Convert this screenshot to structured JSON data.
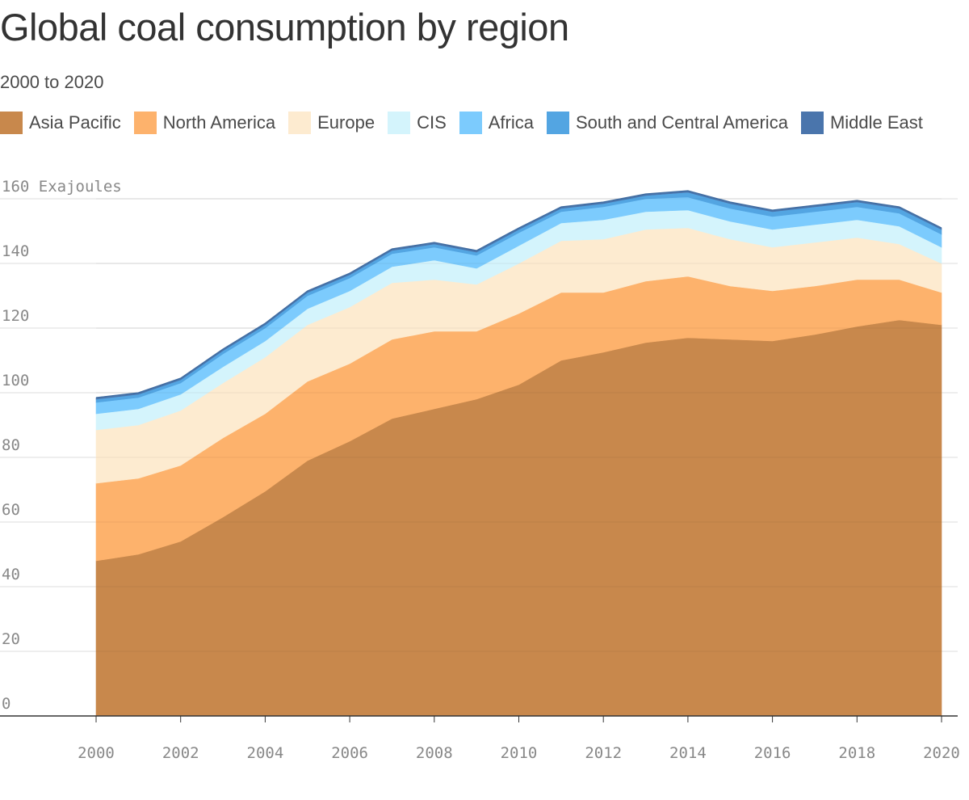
{
  "title": "Global coal consumption by region",
  "subtitle": "2000 to 2020",
  "chart_data": {
    "type": "area",
    "stacked": true,
    "title": "Global coal consumption by region",
    "subtitle": "2000 to 2020",
    "ylabel": "Exajoules",
    "ylim": [
      0,
      160
    ],
    "yticks": [
      0,
      20,
      40,
      60,
      80,
      100,
      120,
      140,
      160
    ],
    "ytick_labels": [
      "0",
      "20",
      "40",
      "60",
      "80",
      "100",
      "120",
      "140",
      "160 Exajoules"
    ],
    "xlim": [
      2000,
      2020
    ],
    "xticks": [
      2000,
      2002,
      2004,
      2006,
      2008,
      2010,
      2012,
      2014,
      2016,
      2018,
      2020
    ],
    "xtick_labels": [
      "2000",
      "2002",
      "2004",
      "2006",
      "2008",
      "2010",
      "2012",
      "2014",
      "2016",
      "2018",
      "2020"
    ],
    "grid": true,
    "legend_position": "top",
    "x": [
      2000,
      2001,
      2002,
      2003,
      2004,
      2005,
      2006,
      2007,
      2008,
      2009,
      2010,
      2011,
      2012,
      2013,
      2014,
      2015,
      2016,
      2017,
      2018,
      2019,
      2020
    ],
    "series": [
      {
        "name": "Asia Pacific",
        "color": "#c8884c",
        "values": [
          48.0,
          50.0,
          54.0,
          61.5,
          69.5,
          79.0,
          85.0,
          92.0,
          95.0,
          98.0,
          102.5,
          110.0,
          112.5,
          115.5,
          117.0,
          116.5,
          116.0,
          118.0,
          120.5,
          122.5,
          121.0
        ]
      },
      {
        "name": "North America",
        "color": "#fdb26c",
        "values": [
          24.0,
          23.5,
          23.5,
          24.5,
          24.0,
          24.5,
          24.0,
          24.5,
          24.0,
          21.0,
          22.0,
          21.0,
          18.5,
          19.0,
          19.0,
          16.5,
          15.5,
          15.0,
          14.5,
          12.5,
          10.0
        ]
      },
      {
        "name": "Europe",
        "color": "#fdebd0",
        "values": [
          16.5,
          16.5,
          17.0,
          17.0,
          17.5,
          17.5,
          17.5,
          17.5,
          16.0,
          14.5,
          15.5,
          16.0,
          16.5,
          16.0,
          15.0,
          14.5,
          13.5,
          13.5,
          13.0,
          11.0,
          9.0
        ]
      },
      {
        "name": "CIS",
        "color": "#d4f4fc",
        "values": [
          5.0,
          5.0,
          5.0,
          5.0,
          5.0,
          5.0,
          5.0,
          5.0,
          6.0,
          5.0,
          5.5,
          5.5,
          6.0,
          5.5,
          5.5,
          5.5,
          5.5,
          5.5,
          5.5,
          5.5,
          5.0
        ]
      },
      {
        "name": "Africa",
        "color": "#7ccbfd",
        "values": [
          3.5,
          3.5,
          3.5,
          4.0,
          4.0,
          4.0,
          4.0,
          4.0,
          4.0,
          4.0,
          4.0,
          3.5,
          4.0,
          4.0,
          4.0,
          4.0,
          4.0,
          4.0,
          4.0,
          4.0,
          4.0
        ]
      },
      {
        "name": "South and Central America",
        "color": "#53a5e2",
        "values": [
          1.0,
          1.0,
          1.0,
          1.0,
          1.0,
          1.0,
          1.0,
          1.0,
          1.0,
          1.0,
          1.0,
          1.0,
          1.0,
          1.0,
          1.5,
          1.5,
          1.5,
          1.5,
          1.5,
          1.5,
          1.5
        ]
      },
      {
        "name": "Middle East",
        "color": "#4a75ac",
        "values": [
          0.5,
          0.5,
          0.5,
          0.5,
          0.5,
          0.5,
          0.5,
          0.5,
          0.5,
          0.5,
          0.5,
          0.5,
          0.5,
          0.5,
          0.5,
          0.5,
          0.5,
          0.5,
          0.5,
          0.5,
          0.5
        ]
      }
    ]
  }
}
